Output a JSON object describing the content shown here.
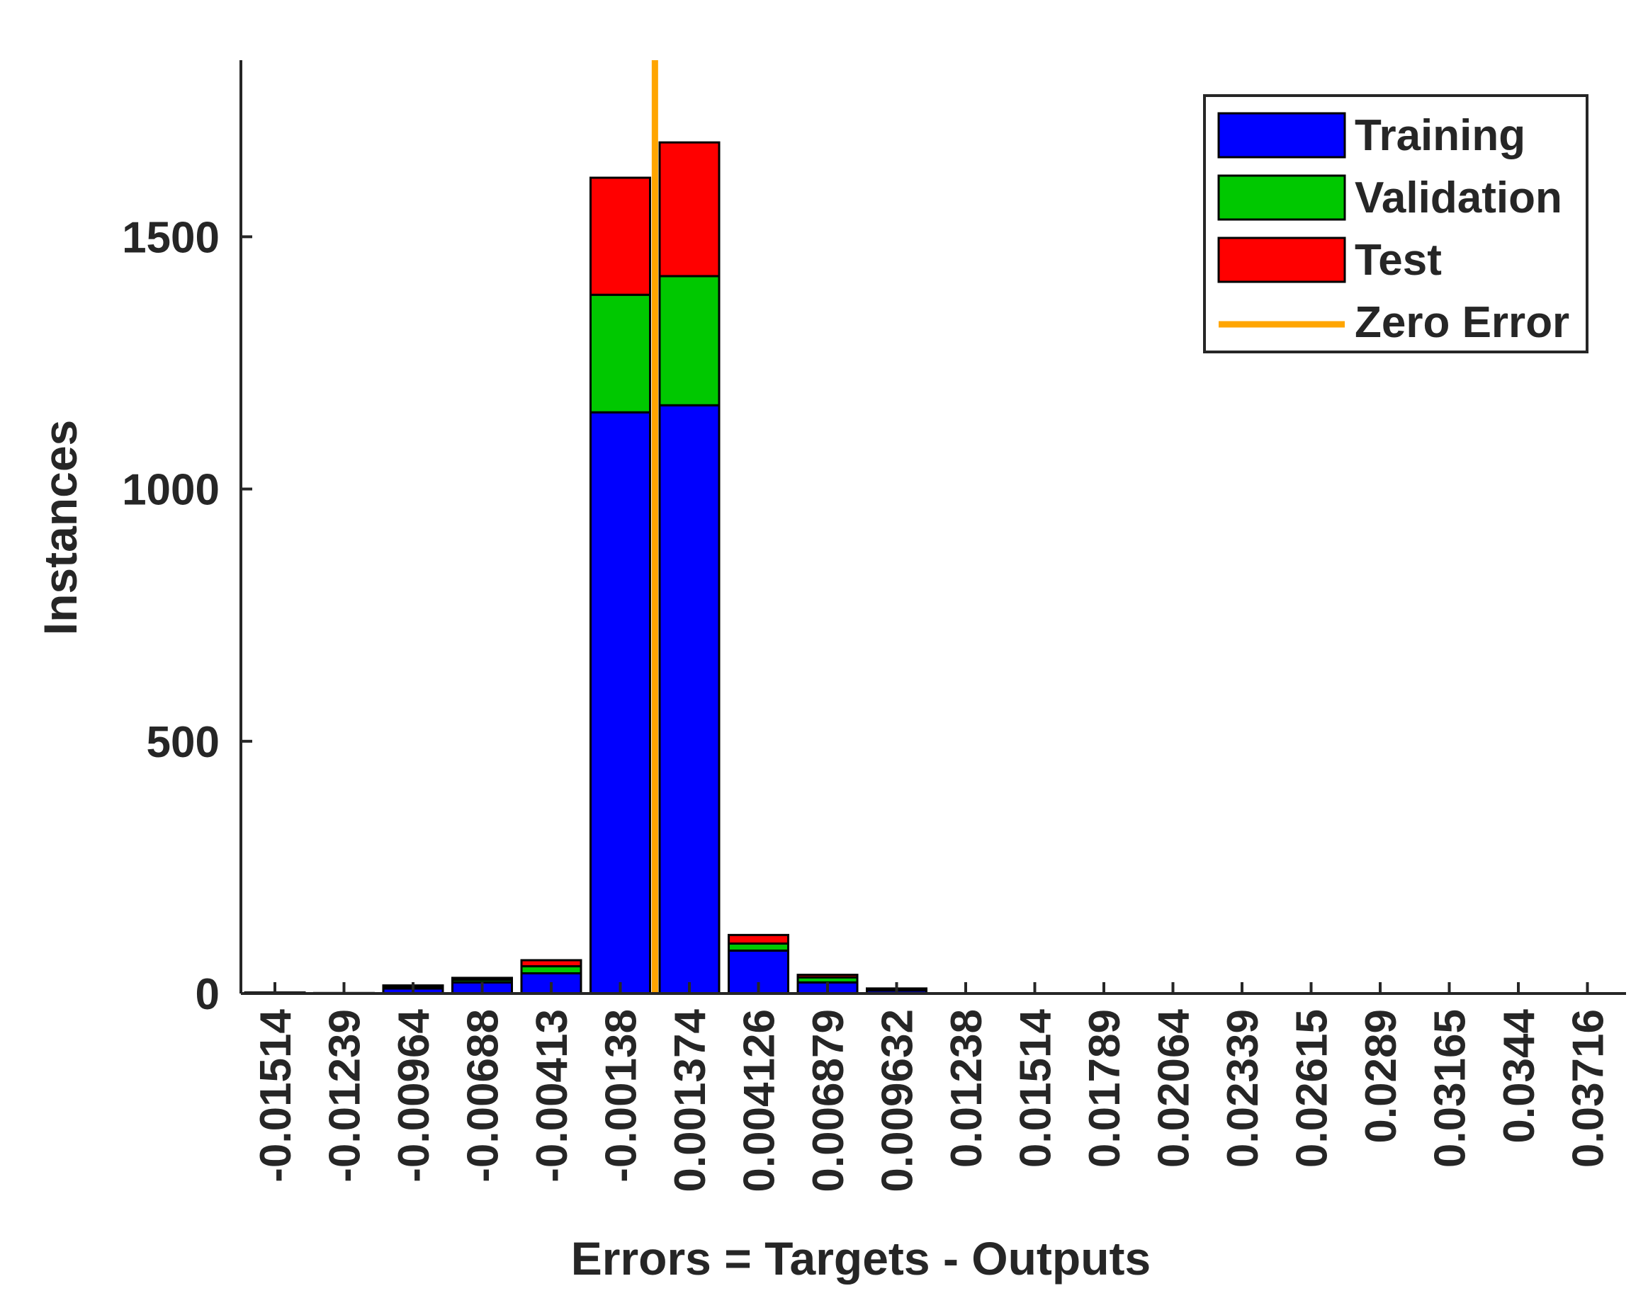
{
  "chart_data": {
    "type": "bar",
    "stacked": true,
    "xlabel": "Errors = Targets - Outputs",
    "ylabel": "Instances",
    "ylim": [
      0,
      1850
    ],
    "yticks": [
      0,
      500,
      1000,
      1500
    ],
    "grid": false,
    "legend_position": "top-right",
    "categories": [
      "-0.01514",
      "-0.01239",
      "-0.00964",
      "-0.00688",
      "-0.00413",
      "-0.00138",
      "0.001374",
      "0.004126",
      "0.006879",
      "0.009632",
      "0.01238",
      "0.01514",
      "0.01789",
      "0.02064",
      "0.02339",
      "0.02615",
      "0.0289",
      "0.03165",
      "0.0344",
      "0.03716"
    ],
    "series": [
      {
        "name": "Training",
        "color": "#0000ff",
        "values": [
          2,
          1,
          10,
          22,
          40,
          1152,
          1166,
          85,
          22,
          6,
          0,
          0,
          0,
          0,
          0,
          0,
          0,
          0,
          0,
          0
        ]
      },
      {
        "name": "Validation",
        "color": "#00c800",
        "values": [
          0,
          0,
          3,
          5,
          14,
          233,
          256,
          14,
          10,
          2,
          0,
          0,
          0,
          0,
          0,
          0,
          0,
          0,
          0,
          0
        ]
      },
      {
        "name": "Test",
        "color": "#ff0000",
        "values": [
          0,
          0,
          3,
          4,
          12,
          232,
          265,
          17,
          5,
          2,
          0,
          0,
          0,
          0,
          0,
          0,
          0,
          0,
          0,
          0
        ]
      }
    ],
    "zero_error": {
      "name": "Zero Error",
      "color": "#ffa500",
      "x": 0
    }
  }
}
